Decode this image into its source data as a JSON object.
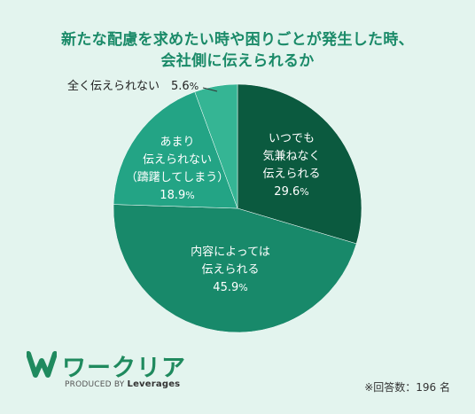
{
  "title": {
    "line1": "新たな配慮を求めたい時や困りごとが発生した時、",
    "line2": "会社側に伝えられるか"
  },
  "chart_data": {
    "type": "pie",
    "title": "新たな配慮を求めたい時や困りごとが発生した時、会社側に伝えられるか",
    "slices": [
      {
        "label": [
          "いつでも",
          "気兼ねなく",
          "伝えられる"
        ],
        "value": 29.6,
        "color": "#0b5a3f"
      },
      {
        "label": [
          "内容によっては",
          "伝えられる"
        ],
        "value": 45.9,
        "color": "#18896a"
      },
      {
        "label": [
          "あまり",
          "伝えられない",
          "（躊躇してしまう）"
        ],
        "value": 18.9,
        "color": "#23a485"
      },
      {
        "label": [
          "全く伝えられない"
        ],
        "value": 5.6,
        "color": "#35b594"
      }
    ],
    "unit": "%"
  },
  "logo": {
    "name": "ワークリア",
    "produced_by": "PRODUCED BY",
    "brand": "Leverages",
    "color": "#1f8a5e"
  },
  "note": "※回答数：196 名"
}
